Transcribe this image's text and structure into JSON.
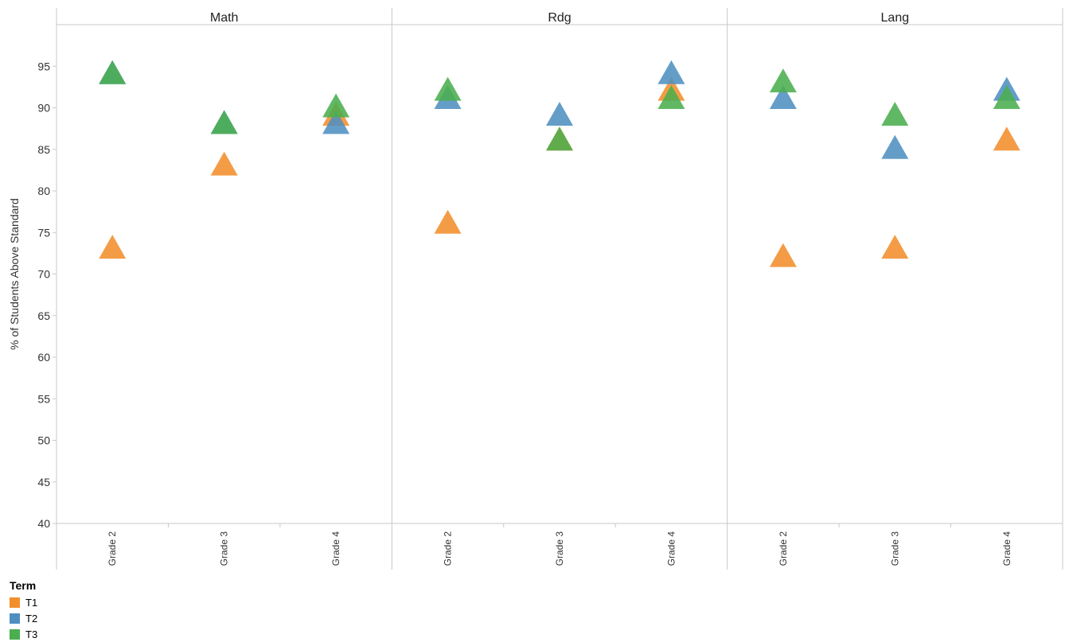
{
  "chart_data": {
    "type": "scatter",
    "mark": "triangle",
    "ylabel": "% of Students Above Standard",
    "ylim": [
      40,
      100
    ],
    "yticks": [
      40,
      45,
      50,
      55,
      60,
      65,
      70,
      75,
      80,
      85,
      90,
      95
    ],
    "panels": [
      "Math",
      "Rdg",
      "Lang"
    ],
    "categories": [
      "Grade 2",
      "Grade 3",
      "Grade 4"
    ],
    "grid": false,
    "legend": {
      "title": "Term",
      "placement": "bottom-left"
    },
    "series": [
      {
        "name": "T1",
        "color": "#F28E2B",
        "values": {
          "Math": [
            73,
            83,
            89
          ],
          "Rdg": [
            76,
            86,
            92
          ],
          "Lang": [
            72,
            73,
            86
          ]
        }
      },
      {
        "name": "T2",
        "color": "#4E8FC0",
        "values": {
          "Math": [
            94,
            88,
            88
          ],
          "Rdg": [
            91,
            89,
            94
          ],
          "Lang": [
            91,
            85,
            92
          ]
        }
      },
      {
        "name": "T3",
        "color": "#4BAE4F",
        "values": {
          "Math": [
            94,
            88,
            90
          ],
          "Rdg": [
            92,
            86,
            91
          ],
          "Lang": [
            93,
            89,
            91
          ]
        }
      }
    ]
  }
}
